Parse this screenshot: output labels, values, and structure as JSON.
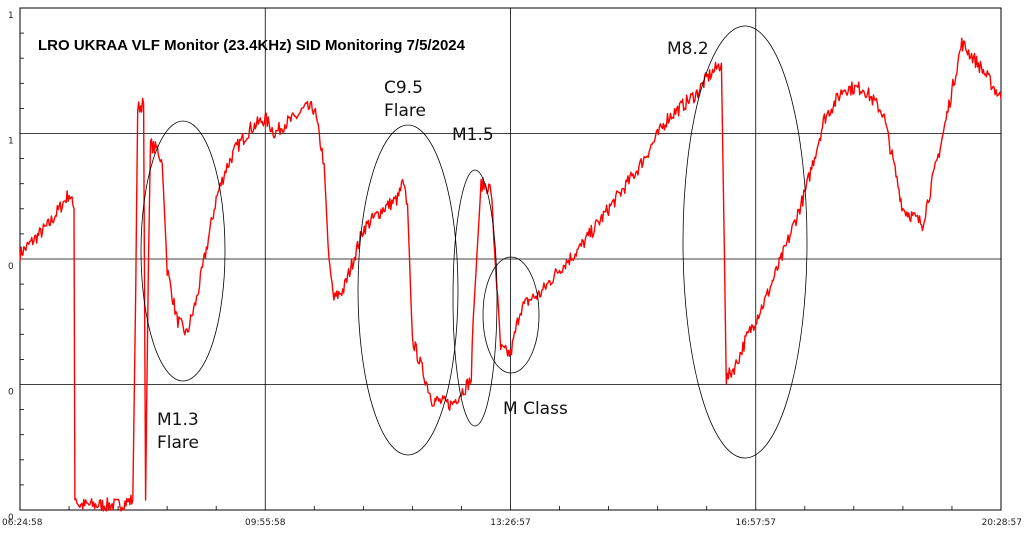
{
  "chart_data": {
    "type": "line",
    "title": "LRO UKRAA VLF Monitor (23.4KHz) SID Monitoring 7/5/2024",
    "xlabel": "",
    "ylabel": "",
    "x_tick_labels": [
      "06:24:58",
      "09:55:58",
      "13:26:57",
      "16:57:57",
      "20:28:57"
    ],
    "y_tick_labels": [
      "1",
      "1",
      "0",
      "0",
      "0"
    ],
    "grid": true,
    "line_color": "#ff0000",
    "series": [
      {
        "x": [
          0,
          0.01,
          0.03,
          0.05,
          0.055,
          0.056,
          0.06,
          0.08,
          0.1,
          0.115,
          0.118,
          0.12,
          0.126,
          0.128,
          0.131,
          0.133,
          0.137,
          0.14,
          0.145,
          0.15,
          0.16,
          0.17,
          0.18,
          0.2,
          0.21,
          0.22,
          0.235,
          0.25,
          0.26,
          0.27,
          0.28,
          0.29,
          0.3,
          0.31,
          0.315,
          0.32,
          0.33,
          0.35,
          0.37,
          0.385,
          0.39,
          0.395,
          0.4,
          0.42,
          0.44,
          0.46,
          0.462,
          0.47,
          0.48,
          0.49,
          0.5,
          0.51,
          0.52,
          0.53,
          0.55,
          0.57,
          0.6,
          0.63,
          0.66,
          0.69,
          0.7,
          0.715,
          0.72,
          0.73,
          0.74,
          0.76,
          0.78,
          0.8,
          0.82,
          0.84,
          0.86,
          0.88,
          0.9,
          0.92,
          0.94,
          0.96,
          0.98,
          1.0
        ],
        "y": [
          0.51,
          0.53,
          0.57,
          0.63,
          0.6,
          0.03,
          0.01,
          0.01,
          0.01,
          0.02,
          0.45,
          0.8,
          0.81,
          0.02,
          0.5,
          0.73,
          0.72,
          0.72,
          0.69,
          0.48,
          0.38,
          0.35,
          0.42,
          0.62,
          0.68,
          0.72,
          0.76,
          0.78,
          0.75,
          0.77,
          0.78,
          0.8,
          0.8,
          0.69,
          0.49,
          0.42,
          0.44,
          0.56,
          0.6,
          0.62,
          0.65,
          0.61,
          0.34,
          0.22,
          0.21,
          0.26,
          0.38,
          0.65,
          0.64,
          0.32,
          0.31,
          0.4,
          0.42,
          0.43,
          0.48,
          0.52,
          0.6,
          0.68,
          0.78,
          0.83,
          0.86,
          0.89,
          0.26,
          0.29,
          0.34,
          0.42,
          0.52,
          0.63,
          0.78,
          0.84,
          0.84,
          0.79,
          0.6,
          0.57,
          0.74,
          0.93,
          0.88,
          0.82
        ]
      }
    ],
    "annotations": [
      {
        "text": "M1.3",
        "line2": "Flare"
      },
      {
        "text": "C9.5",
        "line2": "Flare"
      },
      {
        "text": "M1.5",
        "line2": ""
      },
      {
        "text": "M Class",
        "line2": ""
      },
      {
        "text": "M8.2",
        "line2": ""
      }
    ]
  }
}
